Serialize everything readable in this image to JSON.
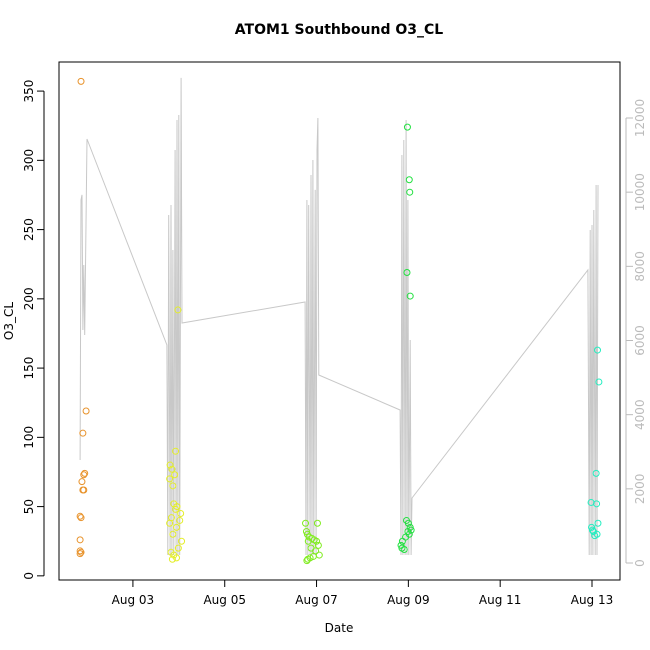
{
  "chart_data": {
    "type": "scatter",
    "title": "ATOM1 Southbound O3_CL",
    "x_label": "Date",
    "y_label": "O3_CL",
    "xlim": [
      1.39,
      13.61
    ],
    "ylim": [
      -3,
      371
    ],
    "y2lim": [
      -458,
      13510
    ],
    "xticks": [
      {
        "value": 3,
        "label": "Aug 03"
      },
      {
        "value": 5,
        "label": "Aug 05"
      },
      {
        "value": 7,
        "label": "Aug 07"
      },
      {
        "value": 9,
        "label": "Aug 09"
      },
      {
        "value": 11,
        "label": "Aug 11"
      },
      {
        "value": 13,
        "label": "Aug 13"
      }
    ],
    "yticks": [
      0,
      50,
      100,
      150,
      200,
      250,
      300,
      350
    ],
    "y2ticks": [
      0,
      2000,
      4000,
      6000,
      8000,
      10000,
      12000
    ],
    "series": [
      {
        "mark": "line",
        "axis": "y2",
        "color": "#c8c8c8",
        "x": [
          1.85,
          1.87,
          1.89,
          1.91,
          1.93,
          1.95,
          2.0,
          3.74,
          3.76,
          3.78,
          3.81,
          3.83,
          3.85,
          3.87,
          3.89,
          3.92,
          3.94,
          3.96,
          3.98,
          4.0,
          4.02,
          4.05,
          4.07,
          6.75,
          6.77,
          6.79,
          6.81,
          6.83,
          6.86,
          6.88,
          6.9,
          6.92,
          6.94,
          6.97,
          6.99,
          7.01,
          7.03,
          7.05,
          8.82,
          8.84,
          8.86,
          8.88,
          8.9,
          8.93,
          8.95,
          8.97,
          8.99,
          9.01,
          9.04,
          9.06,
          9.08,
          12.91,
          12.94,
          12.96,
          12.98,
          13.0,
          13.02,
          13.04,
          13.07,
          13.09,
          13.11,
          13.13
        ],
        "values": [
          2778,
          9790,
          9925,
          6284,
          8036,
          6149,
          11435,
          5879,
          216,
          9385,
          216,
          9655,
          216,
          8441,
          216,
          11138,
          216,
          11947,
          216,
          12082,
          216,
          13080,
          6473,
          7039,
          216,
          9790,
          216,
          9655,
          216,
          10464,
          216,
          10868,
          216,
          10060,
          216,
          11138,
          12001,
          5070,
          4126,
          216,
          11003,
          216,
          11408,
          216,
          11947,
          216,
          9790,
          216,
          6015,
          216,
          1753,
          7902,
          216,
          8980,
          216,
          9115,
          216,
          9520,
          216,
          10194,
          216,
          10194
        ]
      },
      {
        "mark": "point",
        "color": "#e8922a",
        "x": [
          1.87,
          1.91,
          1.98,
          1.95,
          1.93,
          1.89,
          1.91,
          1.93,
          1.85,
          1.87,
          1.85,
          1.85,
          1.87,
          1.85
        ],
        "values": [
          357,
          103,
          119,
          74,
          73,
          68,
          62,
          62,
          43,
          42,
          26,
          18,
          17,
          16
        ]
      },
      {
        "mark": "point",
        "color": "#e4ee2a",
        "x": [
          3.98,
          3.93,
          3.81,
          3.85,
          3.91,
          3.8,
          3.87,
          3.89,
          3.96,
          3.93,
          4.04,
          3.84,
          4.02,
          3.8,
          3.95,
          3.87,
          4.06,
          3.99,
          3.83,
          3.89,
          3.86,
          3.95
        ],
        "values": [
          192,
          90,
          80,
          77,
          73,
          70,
          65,
          52,
          50,
          48,
          45,
          42,
          40,
          38,
          35,
          30,
          25,
          20,
          17,
          15,
          12,
          13
        ]
      },
      {
        "mark": "point",
        "color": "#80ec20",
        "x": [
          6.76,
          7.02,
          6.78,
          6.8,
          6.84,
          6.9,
          6.95,
          7.0,
          6.82,
          7.04,
          6.88,
          6.98,
          7.06,
          6.93,
          6.86,
          6.81,
          6.79
        ],
        "values": [
          38,
          38,
          32,
          30,
          28,
          27,
          26,
          25,
          25,
          22,
          20,
          18,
          15,
          14,
          13,
          12,
          11
        ]
      },
      {
        "mark": "point",
        "color": "#22e040",
        "x": [
          8.98,
          9.02,
          9.03,
          8.97,
          9.04,
          8.96,
          9.0,
          9.04,
          9.06,
          8.99,
          9.02,
          8.94,
          8.87,
          8.84,
          8.86,
          8.91
        ],
        "values": [
          324,
          286,
          277,
          219,
          202,
          40,
          38,
          35,
          33,
          32,
          30,
          28,
          25,
          22,
          20,
          19
        ]
      },
      {
        "mark": "point",
        "color": "#22eec0",
        "x": [
          13.12,
          13.15,
          13.09,
          12.98,
          13.1,
          13.13,
          12.99,
          13.01,
          13.03,
          13.11,
          13.06
        ],
        "values": [
          163,
          140,
          74,
          53,
          52,
          38,
          35,
          33,
          32,
          30,
          29
        ]
      }
    ]
  }
}
